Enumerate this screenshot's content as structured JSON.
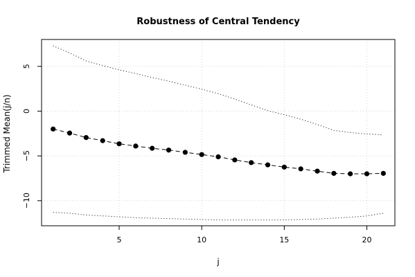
{
  "chart_data": {
    "type": "line",
    "title": "Robustness of Central Tendency",
    "xlabel": "j",
    "ylabel": "Trimmed Mean(j/n)",
    "xlim": [
      0.3,
      21.7
    ],
    "ylim": [
      -12.8,
      8.0
    ],
    "x_ticks": [
      5,
      10,
      15,
      20
    ],
    "y_ticks": [
      -10,
      -5,
      0,
      5
    ],
    "grid": true,
    "x": [
      1,
      2,
      3,
      4,
      5,
      6,
      7,
      8,
      9,
      10,
      11,
      12,
      13,
      14,
      15,
      16,
      17,
      18,
      19,
      20,
      21
    ],
    "series": [
      {
        "style": "dashed line with filled circles",
        "color": "#000000",
        "values": [
          -2.0,
          -2.45,
          -2.95,
          -3.3,
          -3.65,
          -3.9,
          -4.15,
          -4.35,
          -4.6,
          -4.85,
          -5.1,
          -5.45,
          -5.75,
          -6.0,
          -6.25,
          -6.45,
          -6.7,
          -6.95,
          -7.0,
          -7.0,
          -6.95
        ]
      },
      {
        "style": "dotted line",
        "color": "#000000",
        "values": [
          7.3,
          6.5,
          5.6,
          5.1,
          4.6,
          4.2,
          3.75,
          3.35,
          2.9,
          2.45,
          1.95,
          1.35,
          0.7,
          0.05,
          -0.4,
          -0.9,
          -1.5,
          -2.15,
          -2.4,
          -2.55,
          -2.65
        ]
      },
      {
        "style": "dotted line",
        "color": "#000000",
        "values": [
          -11.3,
          -11.4,
          -11.6,
          -11.7,
          -11.8,
          -11.9,
          -11.95,
          -12.0,
          -12.05,
          -12.1,
          -12.15,
          -12.15,
          -12.15,
          -12.15,
          -12.15,
          -12.1,
          -12.05,
          -11.95,
          -11.85,
          -11.7,
          -11.4
        ]
      }
    ]
  }
}
